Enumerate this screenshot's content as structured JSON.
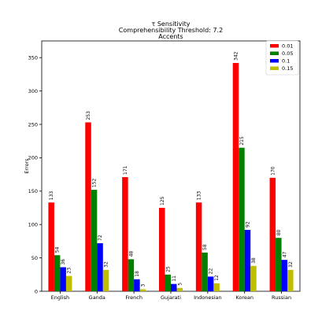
{
  "chart_data": {
    "type": "bar",
    "title": [
      "τ Sensitivity",
      "Comprehensibility Threshold: 7.2",
      "Accents"
    ],
    "xlabel": "",
    "ylabel": "Errors",
    "categories": [
      "English",
      "Ganda",
      "French",
      "Gujarati",
      "Indonesian",
      "Korean",
      "Russian"
    ],
    "ylim": [
      0,
      375
    ],
    "yticks": [
      0,
      50,
      100,
      150,
      200,
      250,
      300,
      350
    ],
    "legend_position": "top-right",
    "grid": false,
    "series": [
      {
        "name": "0.01",
        "color": "#ff0000",
        "values": [
          133,
          253,
          171,
          125,
          133,
          342,
          170
        ]
      },
      {
        "name": "0.05",
        "color": "#008000",
        "values": [
          54,
          152,
          48,
          25,
          58,
          215,
          80
        ]
      },
      {
        "name": "0.1",
        "color": "#0000ff",
        "values": [
          36,
          72,
          18,
          11,
          22,
          92,
          47
        ]
      },
      {
        "name": "0.15",
        "color": "#bfbf00",
        "values": [
          23,
          32,
          3,
          5,
          12,
          38,
          32
        ]
      }
    ]
  }
}
